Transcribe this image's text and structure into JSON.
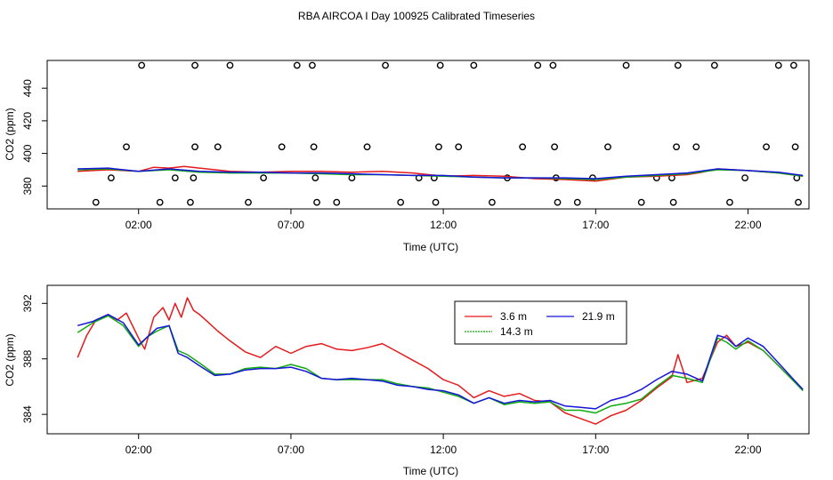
{
  "title": "RBA AIRCOA I  Day 100925  Calibrated Timeseries",
  "colors": {
    "red": "#e41a1c",
    "green": "#11aa11",
    "blue": "#1515d8",
    "axis": "#000000"
  },
  "chart_data": [
    {
      "type": "line",
      "ylabel": "CO2 (ppm)",
      "xlabel": "Time (UTC)",
      "xlim": [
        -1,
        24
      ],
      "ylim": [
        366,
        457
      ],
      "xticks": [
        2,
        7,
        12,
        17,
        22
      ],
      "xtick_labels": [
        "02:00",
        "07:00",
        "12:00",
        "17:00",
        "22:00"
      ],
      "yticks": [
        380,
        400,
        420,
        440
      ],
      "ytick_labels": [
        "380",
        "400",
        "420",
        "440"
      ],
      "series": [
        {
          "name": "3.6 m",
          "color": "#e41a1c",
          "x": [
            0,
            1,
            2,
            2.5,
            3,
            3.5,
            4,
            5,
            6,
            7,
            8,
            9,
            10,
            11,
            12,
            13,
            14,
            15,
            16,
            17,
            18,
            19,
            20,
            20.5,
            21,
            22,
            23,
            23.8
          ],
          "y": [
            389,
            390,
            389,
            391.5,
            391,
            392,
            391,
            389,
            388.5,
            389,
            389,
            388.5,
            389,
            388,
            386,
            386.5,
            386,
            384.5,
            384,
            383,
            385.5,
            386,
            387,
            388.5,
            390.5,
            389.5,
            388,
            386
          ]
        },
        {
          "name": "14.3 m",
          "color": "#11aa11",
          "x": [
            0,
            1,
            2,
            3,
            4,
            5,
            6,
            7,
            8,
            9,
            10,
            11,
            12,
            13,
            14,
            15,
            16,
            17,
            18,
            19,
            20,
            21,
            22,
            23,
            23.8
          ],
          "y": [
            390,
            390.5,
            389,
            390,
            388.5,
            388,
            388,
            388,
            387.5,
            387,
            387,
            386.5,
            386,
            385.5,
            385,
            385,
            384.5,
            384,
            385.5,
            386.5,
            387.5,
            390,
            389.5,
            388,
            386
          ]
        },
        {
          "name": "21.9 m",
          "color": "#1515d8",
          "x": [
            0,
            1,
            2,
            3,
            4,
            5,
            6,
            7,
            8,
            9,
            10,
            11,
            12,
            13,
            14,
            15,
            16,
            17,
            18,
            19,
            20,
            21,
            22,
            23,
            23.8
          ],
          "y": [
            390.5,
            391,
            389,
            390.5,
            389,
            388.5,
            388.5,
            388,
            388,
            387.5,
            387,
            386.5,
            386.5,
            385.5,
            385,
            385,
            385,
            384.5,
            386,
            387,
            388,
            390.5,
            389.5,
            388.5,
            386.5
          ]
        }
      ],
      "points": [
        {
          "x": 0.6,
          "y": 370
        },
        {
          "x": 1.1,
          "y": 385
        },
        {
          "x": 1.6,
          "y": 404
        },
        {
          "x": 2.1,
          "y": 454
        },
        {
          "x": 2.7,
          "y": 370
        },
        {
          "x": 3.2,
          "y": 385
        },
        {
          "x": 3.7,
          "y": 370
        },
        {
          "x": 3.8,
          "y": 385
        },
        {
          "x": 3.85,
          "y": 404
        },
        {
          "x": 3.85,
          "y": 454
        },
        {
          "x": 4.6,
          "y": 404
        },
        {
          "x": 5.0,
          "y": 454
        },
        {
          "x": 5.6,
          "y": 370
        },
        {
          "x": 6.1,
          "y": 385
        },
        {
          "x": 6.7,
          "y": 404
        },
        {
          "x": 7.2,
          "y": 454
        },
        {
          "x": 7.7,
          "y": 454
        },
        {
          "x": 7.75,
          "y": 404
        },
        {
          "x": 7.8,
          "y": 385
        },
        {
          "x": 7.85,
          "y": 370
        },
        {
          "x": 8.5,
          "y": 370
        },
        {
          "x": 9.0,
          "y": 385
        },
        {
          "x": 9.5,
          "y": 404
        },
        {
          "x": 10.1,
          "y": 454
        },
        {
          "x": 10.6,
          "y": 370
        },
        {
          "x": 11.2,
          "y": 385
        },
        {
          "x": 11.7,
          "y": 385
        },
        {
          "x": 11.75,
          "y": 370
        },
        {
          "x": 11.85,
          "y": 404
        },
        {
          "x": 11.9,
          "y": 454
        },
        {
          "x": 12.5,
          "y": 404
        },
        {
          "x": 13.0,
          "y": 454
        },
        {
          "x": 13.6,
          "y": 370
        },
        {
          "x": 14.1,
          "y": 385
        },
        {
          "x": 14.6,
          "y": 404
        },
        {
          "x": 15.1,
          "y": 454
        },
        {
          "x": 15.6,
          "y": 454
        },
        {
          "x": 15.65,
          "y": 404
        },
        {
          "x": 15.7,
          "y": 385
        },
        {
          "x": 15.75,
          "y": 370
        },
        {
          "x": 16.4,
          "y": 370
        },
        {
          "x": 16.9,
          "y": 385
        },
        {
          "x": 17.4,
          "y": 404
        },
        {
          "x": 18.0,
          "y": 454
        },
        {
          "x": 18.5,
          "y": 370
        },
        {
          "x": 19.0,
          "y": 385
        },
        {
          "x": 19.5,
          "y": 385
        },
        {
          "x": 19.55,
          "y": 370
        },
        {
          "x": 19.65,
          "y": 404
        },
        {
          "x": 19.7,
          "y": 454
        },
        {
          "x": 20.3,
          "y": 404
        },
        {
          "x": 20.9,
          "y": 454
        },
        {
          "x": 21.4,
          "y": 370
        },
        {
          "x": 21.9,
          "y": 385
        },
        {
          "x": 22.6,
          "y": 404
        },
        {
          "x": 23.0,
          "y": 454
        },
        {
          "x": 23.5,
          "y": 454
        },
        {
          "x": 23.55,
          "y": 404
        },
        {
          "x": 23.6,
          "y": 385
        },
        {
          "x": 23.65,
          "y": 370
        }
      ]
    },
    {
      "type": "line",
      "ylabel": "CO2 (ppm)",
      "xlabel": "Time (UTC)",
      "xlim": [
        -1,
        24
      ],
      "ylim": [
        382.6,
        393.3
      ],
      "xticks": [
        2,
        7,
        12,
        17,
        22
      ],
      "xtick_labels": [
        "02:00",
        "07:00",
        "12:00",
        "17:00",
        "22:00"
      ],
      "yticks": [
        384,
        388,
        392
      ],
      "ytick_labels": [
        "384",
        "388",
        "392"
      ],
      "legend": "top-center",
      "series": [
        {
          "name": "3.6 m",
          "color": "#e41a1c",
          "x": [
            0,
            0.3,
            0.6,
            1,
            1.3,
            1.6,
            2,
            2.2,
            2.5,
            2.8,
            3,
            3.2,
            3.4,
            3.6,
            3.8,
            4,
            4.3,
            4.6,
            5,
            5.5,
            6,
            6.5,
            7,
            7.5,
            8,
            8.5,
            9,
            9.5,
            10,
            10.5,
            11,
            11.5,
            12,
            12.5,
            13,
            13.5,
            14,
            14.5,
            15,
            15.5,
            16,
            16.5,
            17,
            17.5,
            18,
            18.5,
            19,
            19.5,
            19.7,
            20,
            20.5,
            21,
            21.3,
            21.6,
            22,
            22.5,
            23,
            23.5,
            23.8
          ],
          "y": [
            388.1,
            389.7,
            390.8,
            391.2,
            390.8,
            391.3,
            389.5,
            388.7,
            391,
            391.7,
            390.8,
            392,
            391,
            392.4,
            391.5,
            391.2,
            390.6,
            390,
            389.3,
            388.5,
            388.1,
            388.9,
            388.4,
            388.9,
            389.1,
            388.7,
            388.6,
            388.8,
            389.1,
            388.5,
            387.9,
            387.3,
            386.5,
            386.1,
            385.2,
            385.7,
            385.3,
            385.5,
            385,
            384.9,
            384.1,
            383.7,
            383.3,
            383.9,
            384.3,
            385,
            385.9,
            386.7,
            388.3,
            386.3,
            386.6,
            389.2,
            389.7,
            388.9,
            389.2,
            388.6,
            387.5,
            386.4,
            385.8
          ]
        },
        {
          "name": "14.3 m",
          "color": "#11aa11",
          "x": [
            0,
            0.5,
            1,
            1.5,
            2,
            2.3,
            2.6,
            3,
            3.3,
            3.6,
            4,
            4.5,
            5,
            5.5,
            6,
            6.5,
            7,
            7.5,
            8,
            8.5,
            9,
            9.5,
            10,
            10.5,
            11,
            11.5,
            12,
            12.5,
            13,
            13.5,
            14,
            14.5,
            15,
            15.5,
            16,
            16.5,
            17,
            17.5,
            18,
            18.5,
            19,
            19.5,
            20,
            20.5,
            21,
            21.3,
            21.6,
            22,
            22.5,
            23,
            23.5,
            23.8
          ],
          "y": [
            389.9,
            390.6,
            391.1,
            390.4,
            388.9,
            389.6,
            390,
            390.4,
            388.6,
            388.3,
            387.7,
            386.9,
            386.9,
            387.3,
            387.4,
            387.3,
            387.6,
            387.3,
            386.6,
            386.5,
            386.5,
            386.5,
            386.5,
            386.2,
            386,
            385.9,
            385.6,
            385.3,
            384.8,
            385.2,
            384.7,
            384.9,
            384.8,
            384.9,
            384.3,
            384.3,
            384.1,
            384.6,
            384.8,
            385.1,
            386,
            386.8,
            386.6,
            386.3,
            389.5,
            389.2,
            388.7,
            389.3,
            388.6,
            387.5,
            386.4,
            385.7
          ]
        },
        {
          "name": "21.9 m",
          "color": "#1515d8",
          "x": [
            0,
            0.5,
            1,
            1.5,
            2,
            2.3,
            2.6,
            3,
            3.3,
            3.6,
            4,
            4.5,
            5,
            5.5,
            6,
            6.5,
            7,
            7.5,
            8,
            8.5,
            9,
            9.5,
            10,
            10.5,
            11,
            11.5,
            12,
            12.5,
            13,
            13.5,
            14,
            14.5,
            15,
            15.5,
            16,
            16.5,
            17,
            17.5,
            18,
            18.5,
            19,
            19.5,
            20,
            20.5,
            21,
            21.3,
            21.6,
            22,
            22.5,
            23,
            23.5,
            23.8
          ],
          "y": [
            390.4,
            390.7,
            391.2,
            390.6,
            389,
            389.6,
            390.2,
            390.4,
            388.4,
            388.1,
            387.5,
            386.8,
            386.9,
            387.2,
            387.3,
            387.3,
            387.4,
            387.1,
            386.6,
            386.5,
            386.6,
            386.5,
            386.4,
            386.1,
            386,
            385.8,
            385.7,
            385.4,
            384.8,
            385.2,
            384.8,
            385,
            384.9,
            385,
            384.6,
            384.5,
            384.4,
            385,
            385.3,
            385.8,
            386.5,
            387.1,
            386.9,
            386.4,
            389.7,
            389.5,
            388.9,
            389.5,
            388.9,
            387.7,
            386.5,
            385.8
          ]
        }
      ]
    }
  ]
}
